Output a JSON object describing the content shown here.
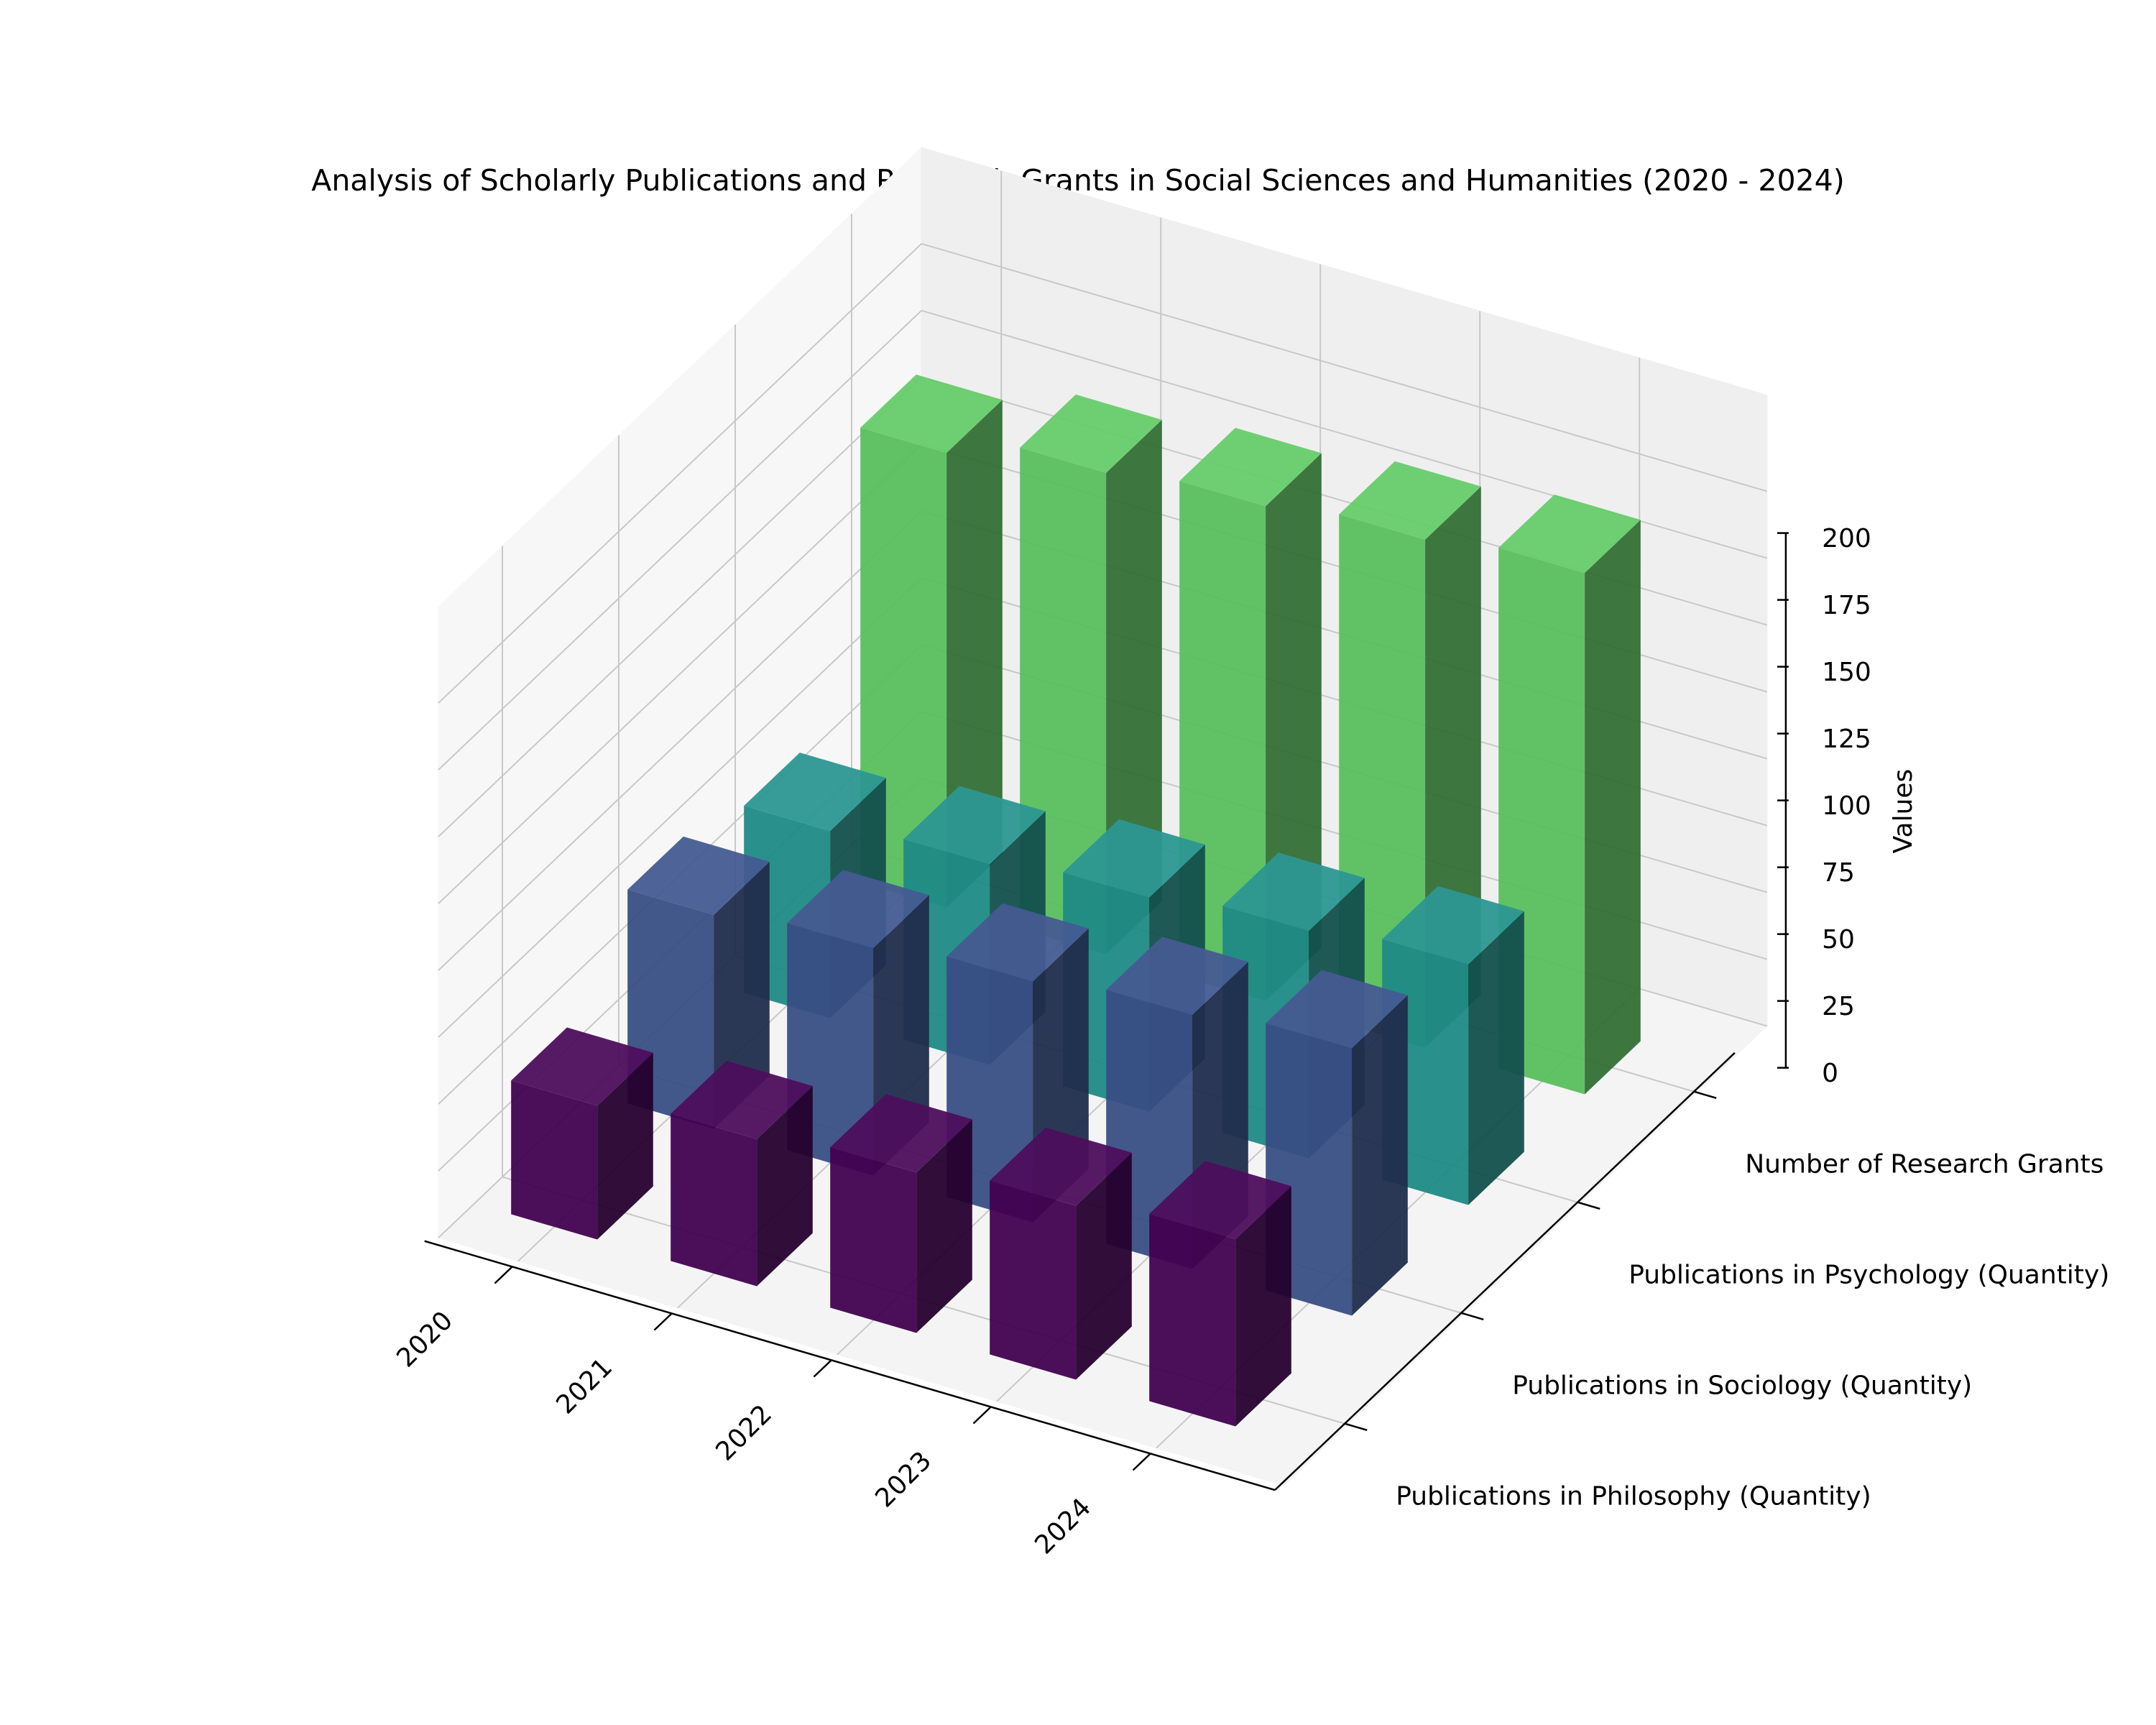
{
  "chart_data": {
    "type": "bar3d",
    "title": "Analysis of Scholarly Publications and Research Grants in Social Sciences and Humanities (2020 - 2024)",
    "categories": [
      "2020",
      "2021",
      "2022",
      "2023",
      "2024"
    ],
    "zlabel": "Values",
    "zlim": [
      0,
      200
    ],
    "zticks": [
      0,
      25,
      50,
      75,
      100,
      125,
      150,
      175,
      200
    ],
    "grid": true,
    "series": [
      {
        "name": "Publications in Philosophy (Quantity)",
        "values": [
          50,
          55,
          60,
          65,
          70
        ],
        "color": "#440154"
      },
      {
        "name": "Publications in Sociology (Quantity)",
        "values": [
          80,
          85,
          90,
          95,
          100
        ],
        "color": "#3b528b"
      },
      {
        "name": "Publications in Psychology (Quantity)",
        "values": [
          70,
          75,
          80,
          85,
          90
        ],
        "color": "#21918c"
      },
      {
        "name": "Number of Research Grants",
        "values": [
          170,
          180,
          185,
          190,
          195
        ],
        "color": "#5ec962"
      }
    ]
  }
}
